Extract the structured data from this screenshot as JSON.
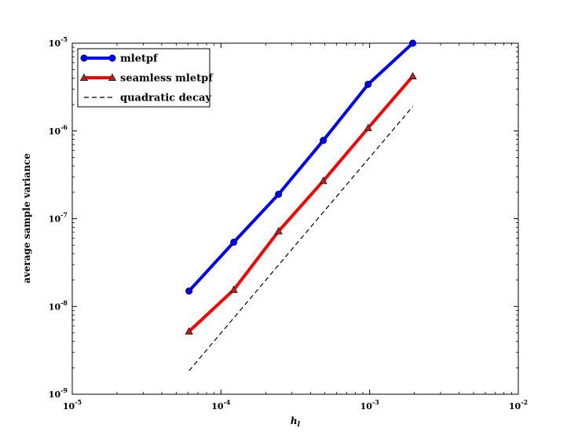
{
  "chart_data": {
    "type": "line",
    "x_scale": "log",
    "y_scale": "log",
    "xlim": [
      1e-05,
      0.01
    ],
    "ylim": [
      1e-09,
      1e-05
    ],
    "xlabel": "h",
    "xlabel_sub": "l",
    "ylabel": "average sample variance",
    "x_ticks": [
      {
        "value": 1e-05,
        "base": "10",
        "exp": "-5"
      },
      {
        "value": 0.0001,
        "base": "10",
        "exp": "-4"
      },
      {
        "value": 0.001,
        "base": "10",
        "exp": "-3"
      },
      {
        "value": 0.01,
        "base": "10",
        "exp": "-2"
      }
    ],
    "y_ticks": [
      {
        "value": 1e-09,
        "base": "10",
        "exp": "-9"
      },
      {
        "value": 1e-08,
        "base": "10",
        "exp": "-8"
      },
      {
        "value": 1e-07,
        "base": "10",
        "exp": "-7"
      },
      {
        "value": 1e-06,
        "base": "10",
        "exp": "-6"
      },
      {
        "value": 1e-05,
        "base": "10",
        "exp": "-5"
      }
    ],
    "legend_position": "top-left",
    "series": [
      {
        "name": "mletpf",
        "color": "#0000ff",
        "marker": "circle",
        "style": "solid",
        "x": [
          6.1e-05,
          0.000122,
          0.000244,
          0.000488,
          0.000977,
          0.00195
        ],
        "y": [
          1.5e-08,
          5.4e-08,
          1.9e-07,
          7.8e-07,
          3.4e-06,
          1e-05
        ]
      },
      {
        "name": "seamless mletpf",
        "color": "#ff0000",
        "marker": "triangle",
        "marker_fill": "#b22222",
        "style": "solid",
        "x": [
          6.1e-05,
          0.000122,
          0.000244,
          0.000488,
          0.000977,
          0.00195
        ],
        "y": [
          5.2e-09,
          1.55e-08,
          7.2e-08,
          2.7e-07,
          1.08e-06,
          4.2e-06
        ]
      },
      {
        "name": "quadratic decay",
        "color": "#000000",
        "marker": "none",
        "style": "dashed",
        "x": [
          6.1e-05,
          0.00195
        ],
        "y": [
          1.85e-09,
          1.9e-06
        ]
      }
    ]
  }
}
